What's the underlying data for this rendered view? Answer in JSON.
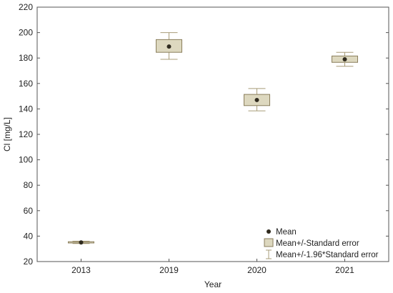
{
  "chart_data": {
    "type": "box",
    "title": "",
    "xlabel": "Year",
    "ylabel": "Cl [mg/L]",
    "ylim": [
      20,
      220
    ],
    "yticks": [
      20,
      40,
      60,
      80,
      100,
      120,
      140,
      160,
      180,
      200,
      220
    ],
    "grid": false,
    "legend_position": "bottom-right",
    "categories": [
      "2013",
      "2019",
      "2020",
      "2021"
    ],
    "series": [
      {
        "name": "Mean",
        "values": [
          35.0,
          189.0,
          147.0,
          179.0
        ]
      },
      {
        "name": "Mean+/-Standard error",
        "low": [
          34.6,
          184.5,
          142.6,
          176.6
        ],
        "high": [
          35.6,
          194.5,
          151.4,
          181.6
        ]
      },
      {
        "name": "Mean+/-1.96*Standard error",
        "low": [
          34.2,
          179.0,
          138.5,
          173.5
        ],
        "high": [
          36.0,
          200.0,
          156.0,
          184.5
        ]
      }
    ],
    "legend": [
      {
        "label": "Mean",
        "symbol": "dot"
      },
      {
        "label": "Mean+/-Standard error",
        "symbol": "box"
      },
      {
        "label": "Mean+/-1.96*Standard error",
        "symbol": "whisker"
      }
    ],
    "colors": {
      "box_fill": "#ddd8bf",
      "box_stroke": "#8a7e5c",
      "whisker": "#a89c78",
      "mean": "#2f2a1e",
      "axis": "#555555"
    }
  }
}
